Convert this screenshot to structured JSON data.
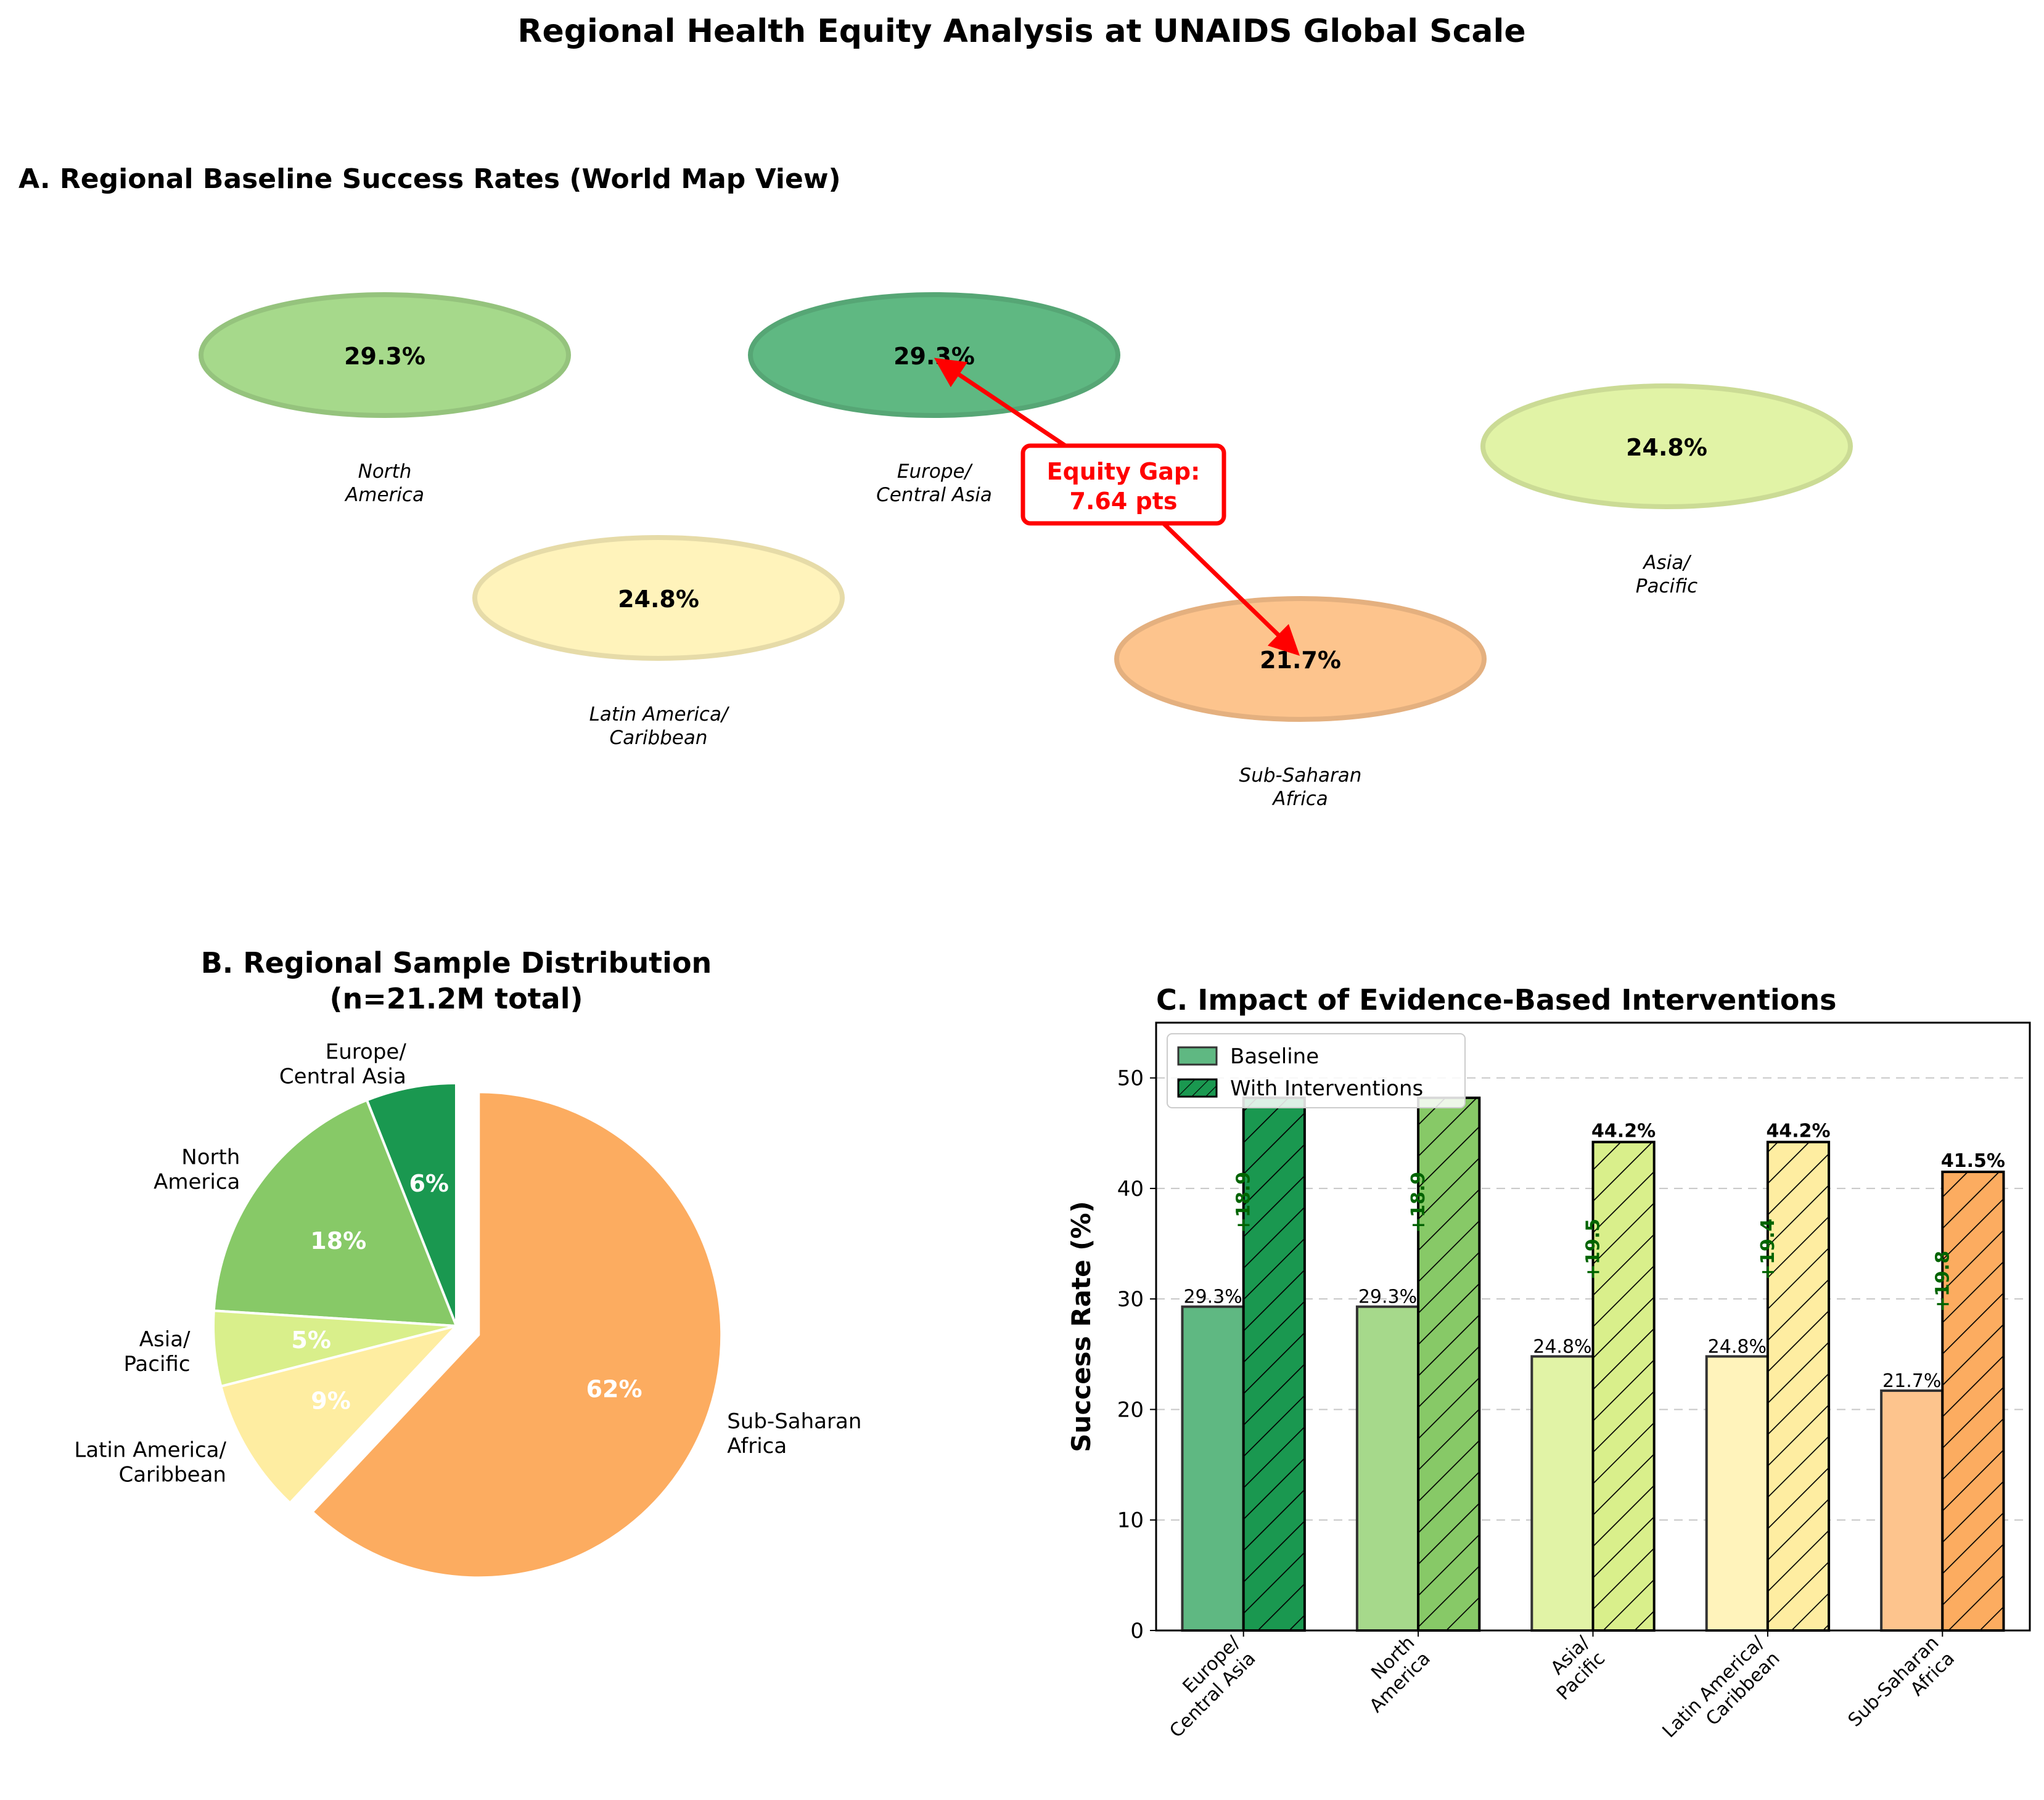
{
  "figure": {
    "title": "Regional Health Equity Analysis at UNAIDS Global Scale"
  },
  "chart_data": [
    {
      "panel": "A",
      "type": "map",
      "title": "A. Regional Baseline Success Rates (World Map View)",
      "regions": [
        {
          "name": "North America",
          "label_lines": [
            "North",
            "America"
          ],
          "value": 29.3,
          "value_label": "29.3%",
          "color": "#a6d98b"
        },
        {
          "name": "Europe/Central Asia",
          "label_lines": [
            "Europe/",
            "Central Asia"
          ],
          "value": 29.3,
          "value_label": "29.3%",
          "color": "#5fb882"
        },
        {
          "name": "Asia/Pacific",
          "label_lines": [
            "Asia/",
            "Pacific"
          ],
          "value": 24.8,
          "value_label": "24.8%",
          "color": "#e1f3a6"
        },
        {
          "name": "Latin America/Caribbean",
          "label_lines": [
            "Latin America/",
            "Caribbean"
          ],
          "value": 24.8,
          "value_label": "24.8%",
          "color": "#fff3bb"
        },
        {
          "name": "Sub-Saharan Africa",
          "label_lines": [
            "Sub-Saharan",
            "Africa"
          ],
          "value": 21.7,
          "value_label": "21.7%",
          "color": "#fdc48d"
        }
      ],
      "annotation": {
        "lines": [
          "Equity Gap:",
          "7.64 pts"
        ],
        "color": "#ff0000",
        "from": "Europe/Central Asia",
        "to": "Sub-Saharan Africa"
      }
    },
    {
      "panel": "B",
      "type": "pie",
      "title_lines": [
        "B. Regional Sample Distribution",
        "(n=21.2M total)"
      ],
      "slices": [
        {
          "name": "Europe/Central Asia",
          "label_lines": [
            "Europe/",
            "Central Asia"
          ],
          "value": 6,
          "pct_label": "6%",
          "color": "#1a9850",
          "explode": false
        },
        {
          "name": "North America",
          "label_lines": [
            "North",
            "America"
          ],
          "value": 18,
          "pct_label": "18%",
          "color": "#87c967",
          "explode": false
        },
        {
          "name": "Asia/Pacific",
          "label_lines": [
            "Asia/",
            "Pacific"
          ],
          "value": 5,
          "pct_label": "5%",
          "color": "#d9ef8b",
          "explode": false
        },
        {
          "name": "Latin America/Caribbean",
          "label_lines": [
            "Latin America/",
            "Caribbean"
          ],
          "value": 9,
          "pct_label": "9%",
          "color": "#feeda1",
          "explode": false
        },
        {
          "name": "Sub-Saharan Africa",
          "label_lines": [
            "Sub-Saharan",
            "Africa"
          ],
          "value": 62,
          "pct_label": "62%",
          "color": "#fcac60",
          "explode": true
        }
      ],
      "start_angle": 90,
      "direction": "counterclockwise"
    },
    {
      "panel": "C",
      "type": "bar",
      "title": "C. Impact of Evidence-Based Interventions",
      "ylabel": "Success Rate (%)",
      "ylim": [
        0,
        55
      ],
      "yticks": [
        0,
        10,
        20,
        30,
        40,
        50
      ],
      "grid": "y-dashed",
      "legend": {
        "placement": "top-left"
      },
      "categories": [
        {
          "name": "Europe/Central Asia",
          "label_lines": [
            "Europe/",
            "Central Asia"
          ],
          "baseline_color": "#5fb882",
          "intervention_color": "#1a9850"
        },
        {
          "name": "North America",
          "label_lines": [
            "North",
            "America"
          ],
          "baseline_color": "#a6d98b",
          "intervention_color": "#87c967"
        },
        {
          "name": "Asia/Pacific",
          "label_lines": [
            "Asia/",
            "Pacific"
          ],
          "baseline_color": "#e1f3a6",
          "intervention_color": "#d9ef8b"
        },
        {
          "name": "Latin America/Caribbean",
          "label_lines": [
            "Latin America/",
            "Caribbean"
          ],
          "baseline_color": "#fff3bb",
          "intervention_color": "#feeda1"
        },
        {
          "name": "Sub-Saharan Africa",
          "label_lines": [
            "Sub-Saharan",
            "Africa"
          ],
          "baseline_color": "#fdc48d",
          "intervention_color": "#fcac60"
        }
      ],
      "series": [
        {
          "name": "Baseline",
          "values": [
            29.3,
            29.3,
            24.8,
            24.8,
            21.7
          ],
          "labels": [
            "29.3%",
            "29.3%",
            "24.8%",
            "24.8%",
            "21.7%"
          ]
        },
        {
          "name": "With Interventions",
          "values": [
            48.2,
            48.2,
            44.2,
            44.2,
            41.5
          ],
          "labels": [
            "",
            "",
            "44.2%",
            "44.2%",
            "41.5%"
          ]
        }
      ],
      "gain_labels": [
        "+18.9",
        "+18.9",
        "+19.5",
        "+19.4",
        "+19.8"
      ],
      "gain_color": "#006400"
    }
  ]
}
